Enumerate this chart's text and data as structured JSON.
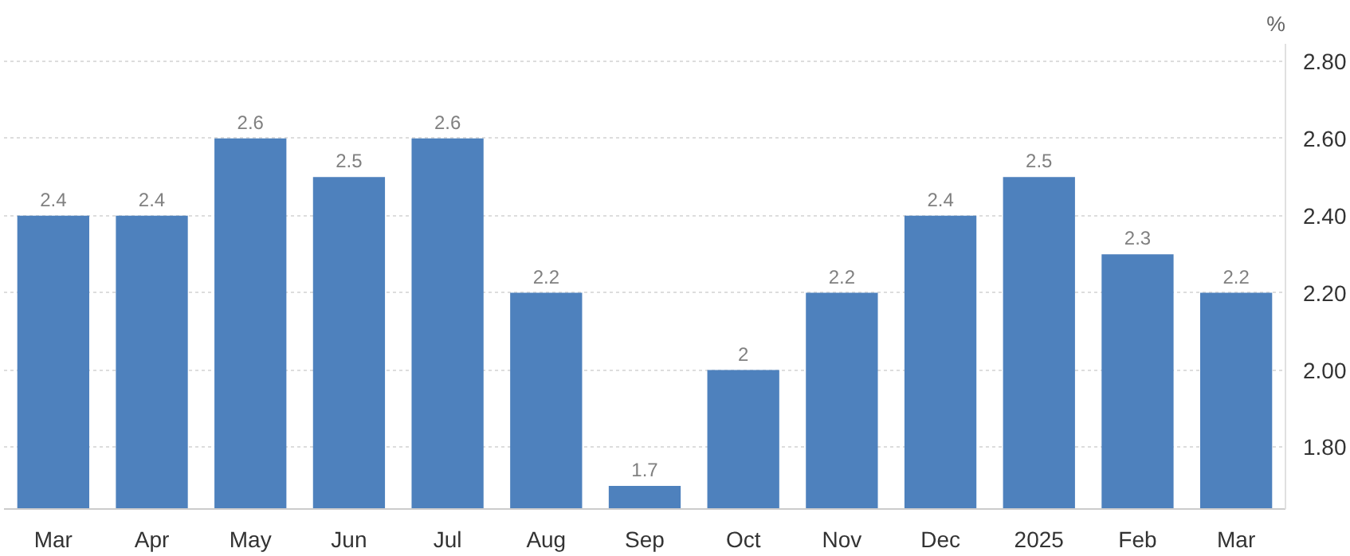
{
  "chart_data": {
    "type": "bar",
    "ylabel": "%",
    "categories": [
      "Mar",
      "Apr",
      "May",
      "Jun",
      "Jul",
      "Aug",
      "Sep",
      "Oct",
      "Nov",
      "Dec",
      "2025",
      "Feb",
      "Mar"
    ],
    "values": [
      2.4,
      2.4,
      2.6,
      2.5,
      2.6,
      2.2,
      1.7,
      2.0,
      2.2,
      2.4,
      2.5,
      2.3,
      2.2
    ],
    "color": "#4e81bd",
    "ylim": [
      1.64,
      2.845
    ],
    "yticks": [
      {
        "value": 1.8,
        "label": "1.80"
      },
      {
        "value": 2.0,
        "label": "2.00"
      },
      {
        "value": 2.2,
        "label": "2.20"
      },
      {
        "value": 2.4,
        "label": "2.40"
      },
      {
        "value": 2.6,
        "label": "2.60"
      },
      {
        "value": 2.8,
        "label": "2.80"
      }
    ],
    "grid": "y",
    "data_labels": true
  }
}
